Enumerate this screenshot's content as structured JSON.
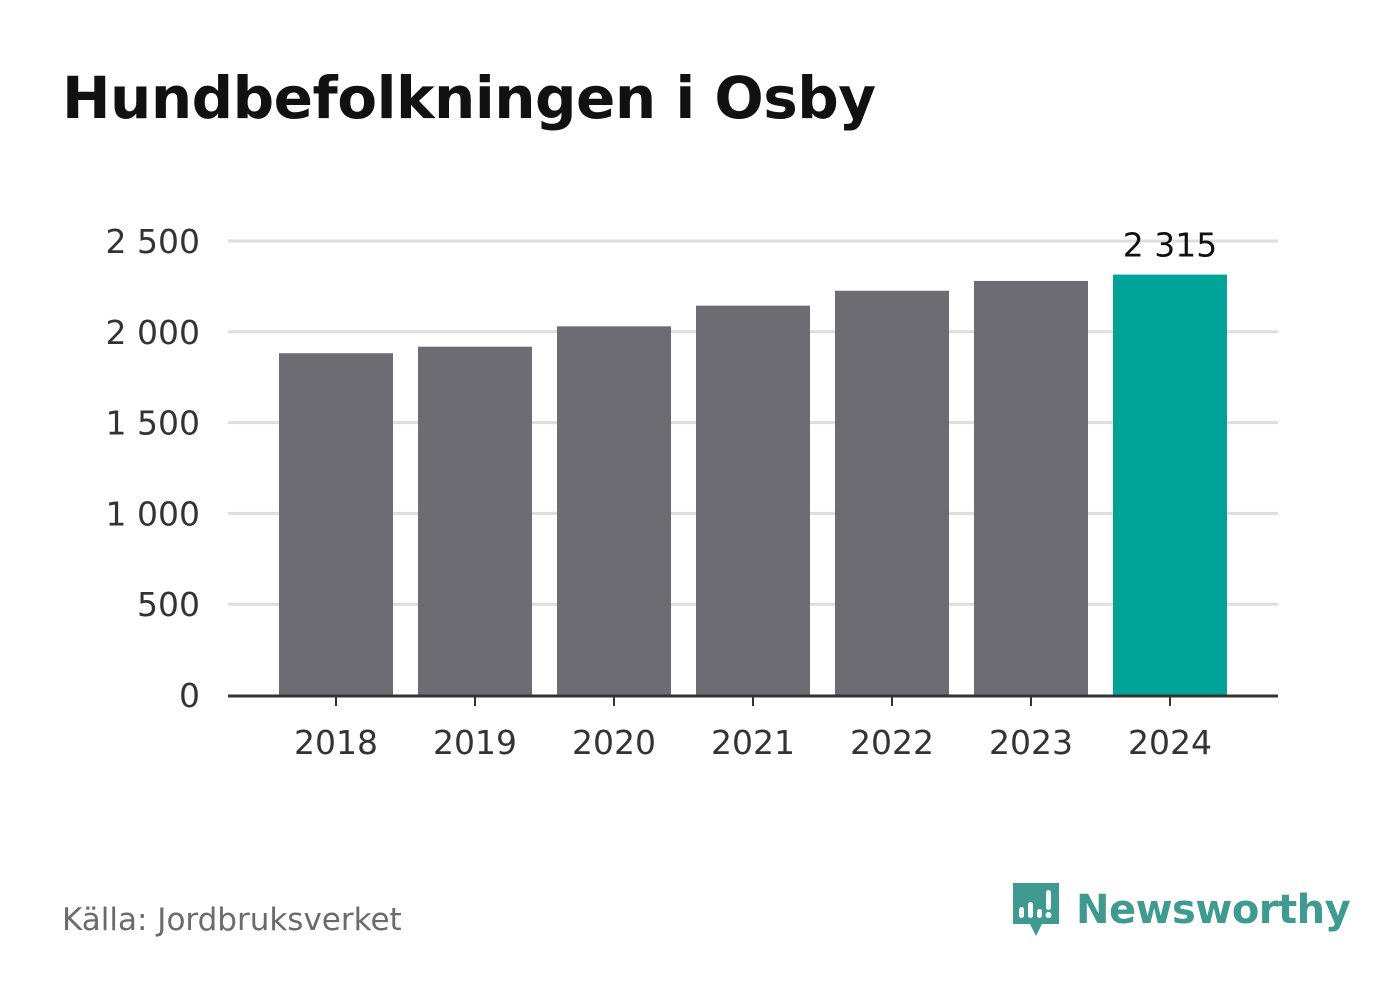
{
  "title": "Hundbefolkningen i Osby",
  "source": "Källa: Jordbruksverket",
  "brand": {
    "name": "Newsworthy",
    "icon": "newsworthy-logo-icon",
    "color": "#3f9b91"
  },
  "colors": {
    "bar": "#6d6c73",
    "highlight": "#00a398",
    "grid": "#dedede",
    "axis": "#333333",
    "text": "#333333"
  },
  "chart_data": {
    "type": "bar",
    "title": "Hundbefolkningen i Osby",
    "categories": [
      "2018",
      "2019",
      "2020",
      "2021",
      "2022",
      "2023",
      "2024"
    ],
    "values": [
      1882,
      1918,
      2030,
      2144,
      2226,
      2280,
      2315
    ],
    "ylim": [
      0,
      2500
    ],
    "yticks": [
      0,
      500,
      1000,
      1500,
      2000,
      2500
    ],
    "ytick_labels": [
      "0",
      "500",
      "1 000",
      "1 500",
      "2 000",
      "2 500"
    ],
    "highlight_index": 6,
    "data_labels": [
      {
        "index": 6,
        "text": "2 315"
      }
    ],
    "grid": true,
    "xlabel": "",
    "ylabel": ""
  }
}
